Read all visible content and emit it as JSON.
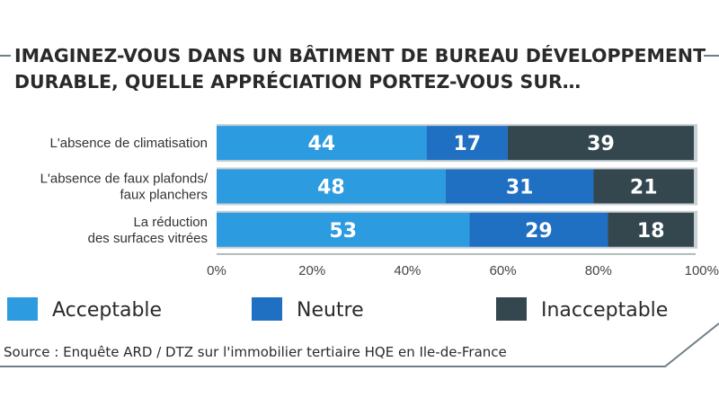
{
  "colors": {
    "acceptable": "#2d9be0",
    "neutre": "#1f6fc2",
    "inacceptable": "#34474f",
    "frame": "#6f7f87"
  },
  "chart_data": {
    "type": "bar",
    "orientation": "horizontal",
    "stacked": true,
    "title": "IMAGINEZ-VOUS DANS UN BÂTIMENT DE BUREAU DÉVELOPPEMENT DURABLE, QUELLE APPRÉCIATION PORTEZ-VOUS SUR…",
    "title_lines": [
      "IMAGINEZ-VOUS DANS UN BÂTIMENT DE BUREAU DÉVELOPPEMENT",
      "DURABLE, QUELLE APPRÉCIATION PORTEZ-VOUS SUR…"
    ],
    "categories": [
      [
        "L'absence de climatisation"
      ],
      [
        "L'absence de faux plafonds/",
        "faux planchers"
      ],
      [
        "La réduction",
        "des surfaces vitrées"
      ]
    ],
    "series": [
      {
        "name": "Acceptable",
        "values": [
          44,
          48,
          53
        ]
      },
      {
        "name": "Neutre",
        "values": [
          17,
          31,
          29
        ]
      },
      {
        "name": "Inacceptable",
        "values": [
          39,
          21,
          18
        ]
      }
    ],
    "xlim": [
      0,
      100
    ],
    "xticks": [
      "0%",
      "20%",
      "40%",
      "60%",
      "80%",
      "100%"
    ],
    "legend_position": "bottom",
    "source": "Source : Enquête ARD / DTZ sur l'immobilier tertiaire HQE en Ile-de-France"
  }
}
